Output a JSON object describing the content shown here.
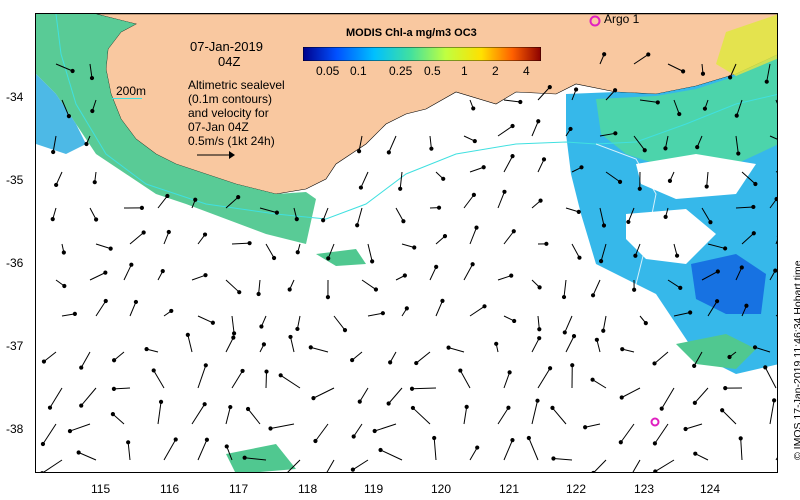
{
  "map": {
    "date_line": "07-Jan-2019",
    "time_line": "04Z",
    "contour_label": "200m",
    "description_lines": [
      "Altimetric sealevel",
      "(0.1m contours)",
      "and velocity for",
      "07-Jan 04Z",
      "0.5m/s (1kt 24h)"
    ],
    "argo_label": "Argo 1",
    "credit": "© IMOS 17-Jan-2019 11:46:34 Hobart time",
    "colors": {
      "land": "#f9c8a0",
      "ocean": "#ffffff",
      "argo_marker": "#e020c0",
      "contour": "#40e0e0"
    }
  },
  "colorbar": {
    "title": "MODIS Chl-a mg/m3 OC3",
    "ticks": [
      "0.05",
      "0.1",
      "0.25",
      "0.5",
      "1",
      "2",
      "4"
    ],
    "colors": [
      "#00008b",
      "#0050ff",
      "#00c0ff",
      "#40e0a0",
      "#c0ff40",
      "#ffe000",
      "#ff6000",
      "#8b0000"
    ]
  },
  "axes": {
    "x_ticks": [
      "115",
      "116",
      "117",
      "118",
      "119",
      "120",
      "121",
      "122",
      "123",
      "124"
    ],
    "y_ticks": [
      "-34",
      "-35",
      "-36",
      "-37",
      "-38"
    ]
  }
}
